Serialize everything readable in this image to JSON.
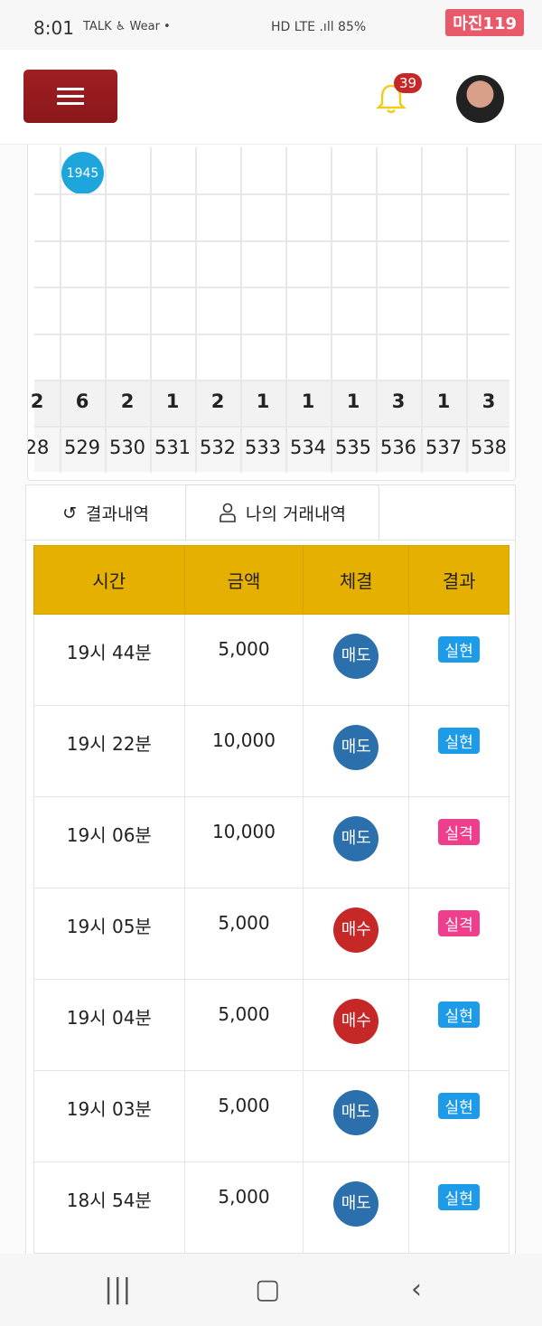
{
  "status": {
    "time": "8:01",
    "left_icons": "TALK ♿ Wear •",
    "right": "HD LTE .ıll 85%",
    "watermark": "마진119"
  },
  "header": {
    "notification_count": "39"
  },
  "grid": {
    "ball": "1945",
    "counts": [
      "2",
      "6",
      "2",
      "1",
      "2",
      "1",
      "1",
      "1",
      "3",
      "1",
      "3"
    ],
    "numbers": [
      "28",
      "529",
      "530",
      "531",
      "532",
      "533",
      "534",
      "535",
      "536",
      "537",
      "538"
    ]
  },
  "tabs": [
    {
      "label": "결과내역",
      "icon": "history-icon"
    },
    {
      "label": "나의 거래내역",
      "icon": "user-icon",
      "active": true
    }
  ],
  "table": {
    "headers": [
      "시간",
      "금액",
      "체결",
      "결과"
    ],
    "rows": [
      {
        "time": "19시 44분",
        "amount": "5,000",
        "trade": "매도",
        "result": "실현"
      },
      {
        "time": "19시 22분",
        "amount": "10,000",
        "trade": "매도",
        "result": "실현"
      },
      {
        "time": "19시 06분",
        "amount": "10,000",
        "trade": "매도",
        "result": "실격"
      },
      {
        "time": "19시 05분",
        "amount": "5,000",
        "trade": "매수",
        "result": "실격"
      },
      {
        "time": "19시 04분",
        "amount": "5,000",
        "trade": "매수",
        "result": "실현"
      },
      {
        "time": "19시 03분",
        "amount": "5,000",
        "trade": "매도",
        "result": "실현"
      },
      {
        "time": "18시 54분",
        "amount": "5,000",
        "trade": "매도",
        "result": "실현"
      }
    ]
  },
  "colors": {
    "header_gold": "#e6b000",
    "sell": "#2b6fad",
    "buy": "#c62828",
    "win": "#1e9be8",
    "lose": "#ee3e8c",
    "menu": "#a11e22"
  }
}
